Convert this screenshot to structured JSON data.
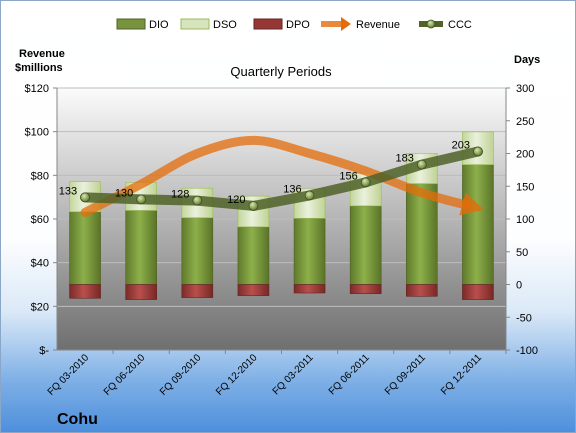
{
  "company": "Cohu",
  "chart_data": {
    "type": "bar",
    "title": "Quarterly Periods",
    "left_axis_label": [
      "Revenue",
      "$millions"
    ],
    "right_axis_label": "Days",
    "legend": [
      "DIO",
      "DSO",
      "DPO",
      "Revenue",
      "CCC"
    ],
    "categories": [
      "FQ 03-2010",
      "FQ 06-2010",
      "FQ 09-2010",
      "FQ 12-2010",
      "FQ 03-2011",
      "FQ 06-2011",
      "FQ 09-2011",
      "FQ 12-2011"
    ],
    "left_ylim": [
      0,
      120
    ],
    "left_ticks": [
      "$-",
      "$20",
      "$40",
      "$60",
      "$80",
      "$100",
      "$120"
    ],
    "right_ylim": [
      -100,
      300
    ],
    "right_ticks": [
      "-100",
      "-50",
      "0",
      "50",
      "100",
      "150",
      "200",
      "250",
      "300"
    ],
    "series": [
      {
        "name": "DIO",
        "axis": "right",
        "values": [
          111,
          113,
          102,
          88,
          101,
          120,
          154,
          183
        ]
      },
      {
        "name": "DSO",
        "axis": "right",
        "values": [
          46,
          43,
          45,
          47,
          45,
          50,
          46,
          50
        ]
      },
      {
        "name": "DPO",
        "axis": "right",
        "values": [
          -21,
          -23,
          -20,
          -17,
          -13,
          -14,
          -18,
          -23
        ]
      },
      {
        "name": "Revenue",
        "axis": "left",
        "values": [
          63,
          76,
          90,
          96,
          90,
          82,
          72,
          65
        ]
      },
      {
        "name": "CCC",
        "axis": "right",
        "values": [
          133,
          130,
          128,
          120,
          136,
          156,
          183,
          203
        ]
      }
    ],
    "ccc_labels": [
      "133",
      "130",
      "128",
      "120",
      "136",
      "156",
      "183",
      "203"
    ],
    "colors": {
      "DIO": "#77933c",
      "DSO": "#d7e4bd",
      "DPO": "#953735",
      "Revenue": "#e46c0a",
      "CCC": "#4f6228",
      "plot_bg_top": "#f2f2f2",
      "plot_bg_bottom": "#7f7f7f"
    }
  }
}
